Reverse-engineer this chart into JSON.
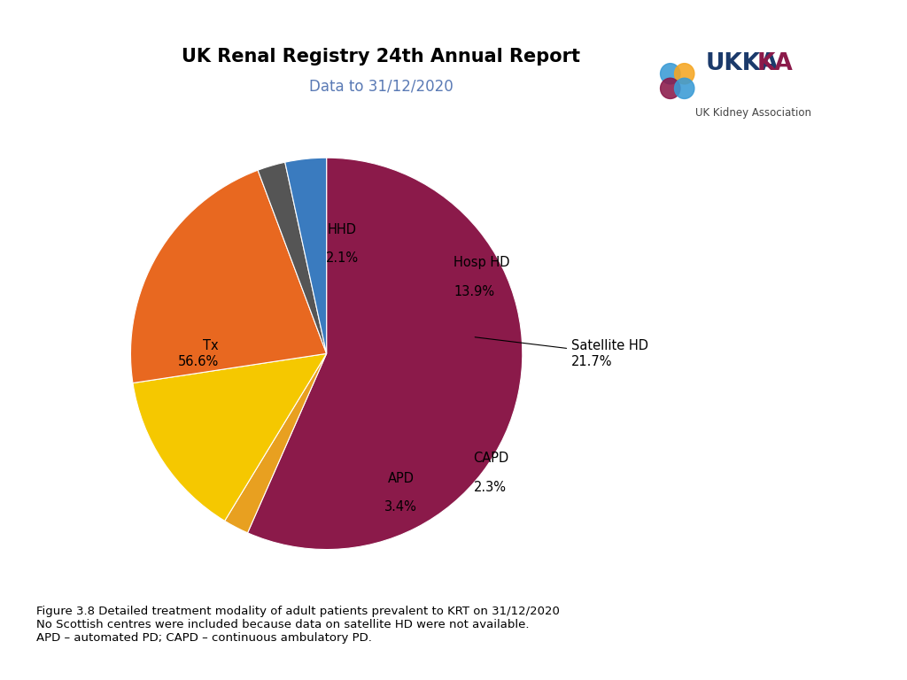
{
  "title": "UK Renal Registry 24th Annual Report",
  "subtitle": "Data to 31/12/2020",
  "slices": [
    {
      "label": "Tx",
      "pct": 56.6,
      "color": "#8B1A4A"
    },
    {
      "label": "HHD",
      "pct": 2.1,
      "color": "#E8A020"
    },
    {
      "label": "Hosp HD",
      "pct": 13.9,
      "color": "#F5C800"
    },
    {
      "label": "Satellite HD",
      "pct": 21.7,
      "color": "#E86820"
    },
    {
      "label": "CAPD",
      "pct": 2.3,
      "color": "#555555"
    },
    {
      "label": "APD",
      "pct": 3.4,
      "color": "#3A7BBF"
    }
  ],
  "caption_lines": [
    "Figure 3.8 Detailed treatment modality of adult patients prevalent to KRT on 31/12/2020",
    "No Scottish centres were included because data on satellite HD were not available.",
    "APD – automated PD; CAPD – continuous ambulatory PD."
  ],
  "start_angle": 90,
  "background_color": "#FFFFFF"
}
